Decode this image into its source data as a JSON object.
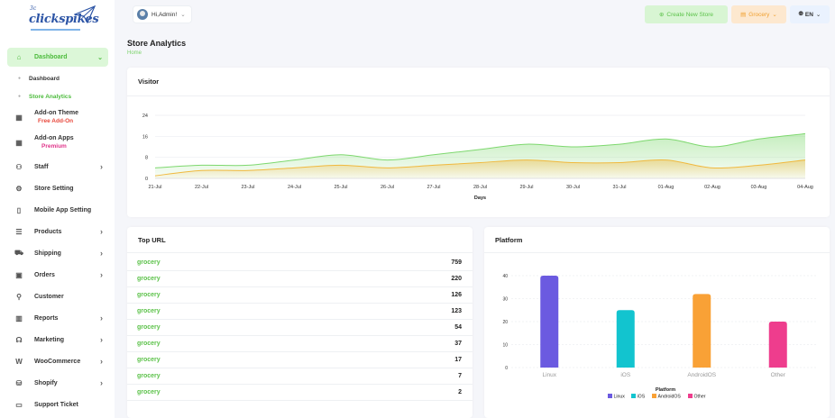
{
  "brand": {
    "sup": "3c",
    "name": "clickspikes"
  },
  "topbar": {
    "admin_label": "Hi,Admin!",
    "create_label": "Create New Store",
    "store_label": "Grocery",
    "lang_label": "EN"
  },
  "page": {
    "title": "Store Analytics",
    "breadcrumb": "Home"
  },
  "sidebar": {
    "dashboard": "Dashboard",
    "sub": [
      "Dashboard",
      "Store Analytics"
    ],
    "addon_theme": {
      "label": "Add-on Theme",
      "badge": "Free Add-On",
      "badge_color": "#e8483c"
    },
    "addon_apps": {
      "label": "Add-on Apps",
      "badge": "Premium",
      "badge_color": "#e0348a"
    },
    "items": [
      {
        "label": "Staff",
        "icon": "users-icon",
        "chevron": true
      },
      {
        "label": "Store Setting",
        "icon": "settings-icon",
        "chevron": false
      },
      {
        "label": "Mobile App Setting",
        "icon": "mobile-icon",
        "chevron": false
      },
      {
        "label": "Products",
        "icon": "list-icon",
        "chevron": true
      },
      {
        "label": "Shipping",
        "icon": "truck-icon",
        "chevron": true
      },
      {
        "label": "Orders",
        "icon": "box-icon",
        "chevron": true
      },
      {
        "label": "Customer",
        "icon": "user-icon",
        "chevron": false
      },
      {
        "label": "Reports",
        "icon": "chart-icon",
        "chevron": true
      },
      {
        "label": "Marketing",
        "icon": "megaphone-icon",
        "chevron": true
      },
      {
        "label": "WooCommerce",
        "icon": "woo-icon",
        "chevron": true
      },
      {
        "label": "Shopify",
        "icon": "shopify-icon",
        "chevron": true
      },
      {
        "label": "Support Ticket",
        "icon": "ticket-icon",
        "chevron": false
      }
    ]
  },
  "visitor": {
    "title": "Visitor"
  },
  "topurl": {
    "title": "Top URL",
    "rows": [
      {
        "url": "grocery",
        "count": "759"
      },
      {
        "url": "grocery",
        "count": "220"
      },
      {
        "url": "grocery",
        "count": "126"
      },
      {
        "url": "grocery",
        "count": "123"
      },
      {
        "url": "grocery",
        "count": "54"
      },
      {
        "url": "grocery",
        "count": "37"
      },
      {
        "url": "grocery",
        "count": "17"
      },
      {
        "url": "grocery",
        "count": "7"
      },
      {
        "url": "grocery",
        "count": "2"
      }
    ]
  },
  "platform": {
    "title": "Platform"
  },
  "colors": {
    "accent": "#5cc24a",
    "orange": "#f0a030"
  },
  "chart_data": [
    {
      "type": "area",
      "xlabel": "Days",
      "categories": [
        "21-Jul",
        "22-Jul",
        "23-Jul",
        "24-Jul",
        "25-Jul",
        "26-Jul",
        "27-Jul",
        "28-Jul",
        "29-Jul",
        "30-Jul",
        "31-Jul",
        "01-Aug",
        "02-Aug",
        "03-Aug",
        "04-Aug"
      ],
      "ylim": [
        0,
        24
      ],
      "yticks": [
        0,
        8,
        16,
        24
      ],
      "grid": true,
      "series": [
        {
          "values": [
            4,
            5,
            5,
            7,
            9,
            7,
            9,
            11,
            13,
            12,
            13,
            15,
            12,
            15,
            17
          ],
          "color": "#7ed86f"
        },
        {
          "values": [
            1,
            3,
            3,
            4,
            5,
            4,
            5,
            6,
            7,
            6,
            6,
            7,
            4,
            5,
            7
          ],
          "color": "#f0b93f"
        }
      ]
    },
    {
      "type": "bar",
      "categories": [
        "Linux",
        "iOS",
        "AndroidOS",
        "Other"
      ],
      "values": [
        40,
        25,
        32,
        20
      ],
      "colors": [
        "#6b5ae0",
        "#12c4cf",
        "#f9a136",
        "#ee3d8d"
      ],
      "ylim": [
        0,
        40
      ],
      "yticks": [
        0,
        10,
        20,
        30,
        40
      ],
      "legend_title": "Platform",
      "legend": [
        "Linux",
        "iOS",
        "AndroidOS",
        "Other"
      ],
      "legend_position": "bottom",
      "grid": true
    }
  ]
}
